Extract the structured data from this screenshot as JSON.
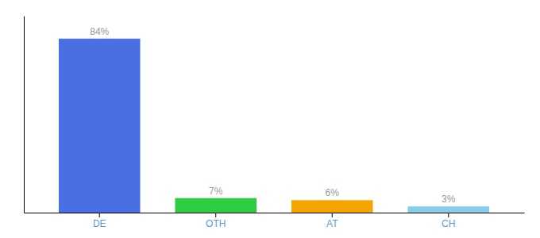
{
  "chart_data": {
    "type": "bar",
    "categories": [
      "DE",
      "OTH",
      "AT",
      "CH"
    ],
    "values": [
      84,
      7,
      6,
      3
    ],
    "value_labels": [
      "84%",
      "7%",
      "6%",
      "3%"
    ],
    "colors": [
      "#4A6FE3",
      "#2ECC40",
      "#F4A400",
      "#87CEEB"
    ],
    "ylim": [
      0,
      95
    ],
    "data_labels": true,
    "tick_labels": "x",
    "grid": false
  }
}
